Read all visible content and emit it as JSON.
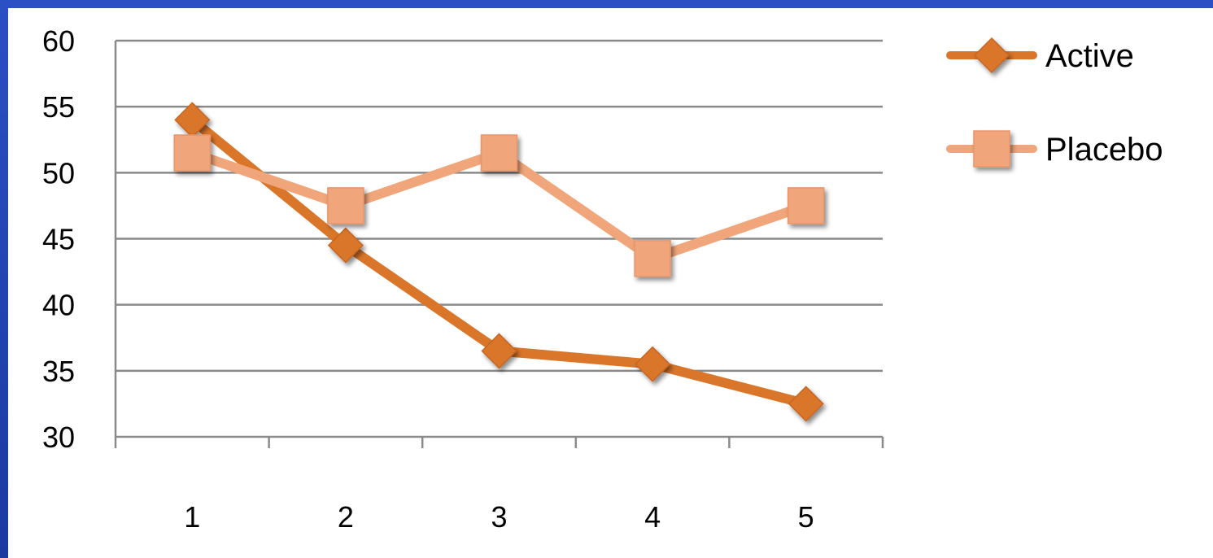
{
  "chart_data": {
    "type": "line",
    "categories": [
      "1",
      "2",
      "3",
      "4",
      "5"
    ],
    "ylim": [
      30,
      60
    ],
    "yticks": [
      30,
      35,
      40,
      45,
      50,
      55,
      60
    ],
    "grid": true,
    "legend_position": "right",
    "series": [
      {
        "name": "Active",
        "values": [
          54,
          44.5,
          36.5,
          35.5,
          32.5
        ],
        "color": "#d9762a",
        "marker": "diamond"
      },
      {
        "name": "Placebo",
        "values": [
          51.5,
          47.5,
          51.5,
          43.5,
          47.5
        ],
        "color": "#f0a57a",
        "marker": "square"
      }
    ]
  }
}
